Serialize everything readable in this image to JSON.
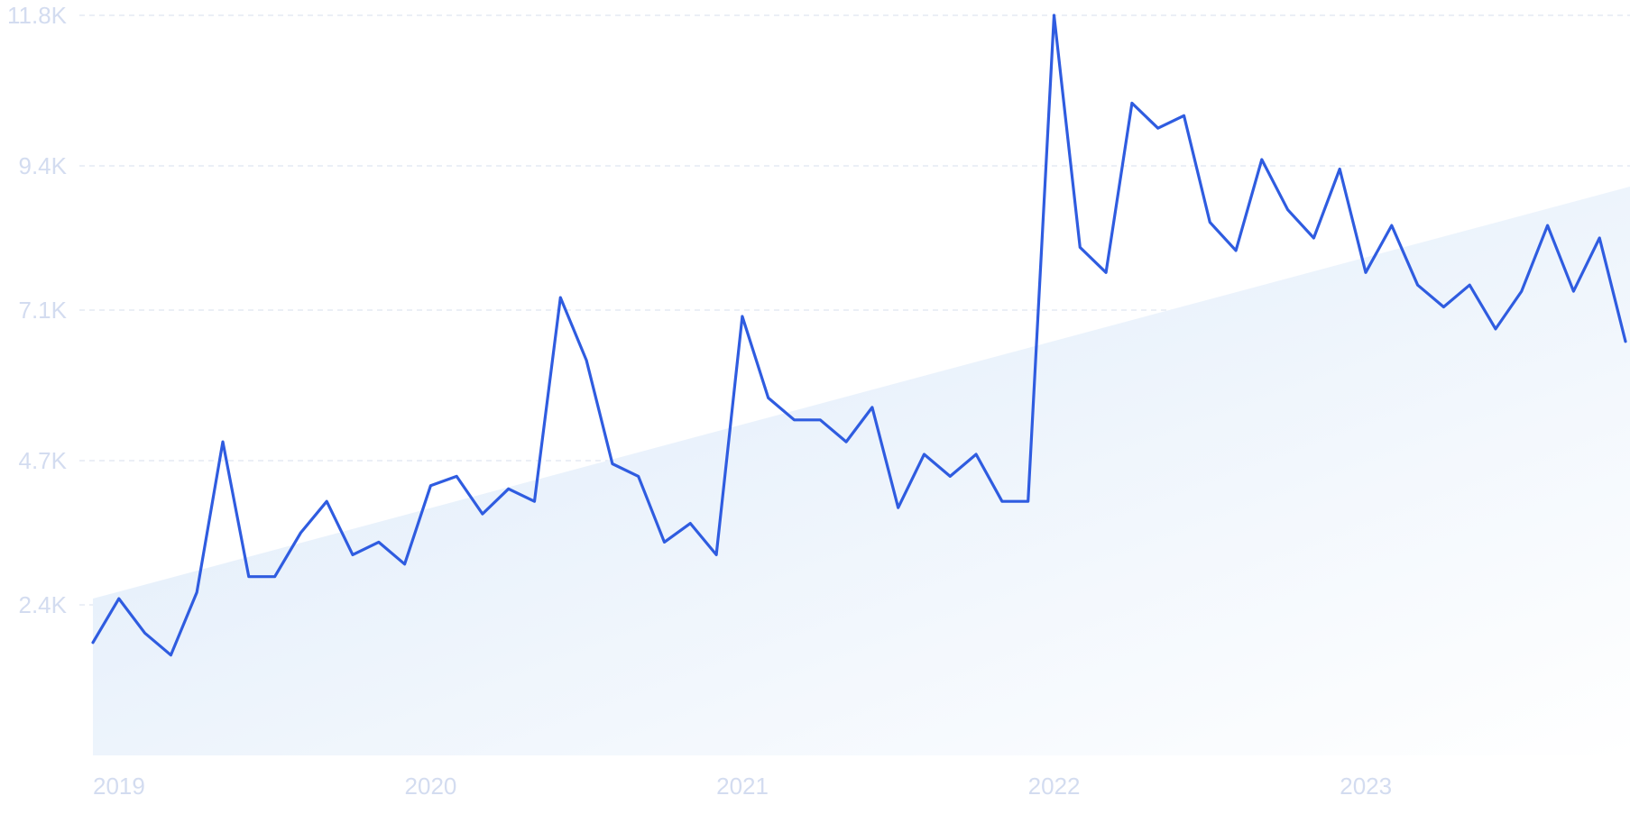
{
  "chart_data": {
    "type": "line",
    "title": "",
    "xlabel": "",
    "ylabel": "",
    "x_ticks": [
      "2019",
      "2020",
      "2021",
      "2022",
      "2023"
    ],
    "y_ticks": [
      "2.4K",
      "4.7K",
      "7.1K",
      "9.4K",
      "11.8K"
    ],
    "y_tick_values": [
      2400,
      4700,
      7100,
      9400,
      11800
    ],
    "ylim": [
      0,
      11800
    ],
    "xlim": [
      "2019-01",
      "2023-12"
    ],
    "grid": true,
    "legend": "none",
    "series": [
      {
        "x": [
          "2019-01",
          "2019-02",
          "2019-03",
          "2019-04",
          "2019-05",
          "2019-06",
          "2019-07",
          "2019-08",
          "2019-09",
          "2019-10",
          "2019-11",
          "2019-12",
          "2020-01",
          "2020-02",
          "2020-03",
          "2020-04",
          "2020-05",
          "2020-06",
          "2020-07",
          "2020-08",
          "2020-09",
          "2020-10",
          "2020-11",
          "2020-12",
          "2021-01",
          "2021-02",
          "2021-03",
          "2021-04",
          "2021-05",
          "2021-06",
          "2021-07",
          "2021-08",
          "2021-09",
          "2021-10",
          "2021-11",
          "2021-12",
          "2022-01",
          "2022-02",
          "2022-03",
          "2022-04",
          "2022-05",
          "2022-06",
          "2022-07",
          "2022-08",
          "2022-09",
          "2022-10",
          "2022-11",
          "2022-12",
          "2023-01",
          "2023-02",
          "2023-03",
          "2023-04",
          "2023-05",
          "2023-06",
          "2023-07",
          "2023-08",
          "2023-09",
          "2023-10",
          "2023-11",
          "2023-12"
        ],
        "values": [
          1800,
          2500,
          1950,
          1600,
          2600,
          5000,
          2850,
          2850,
          3550,
          4050,
          3200,
          3400,
          3050,
          4300,
          4450,
          3850,
          4250,
          4050,
          7300,
          6300,
          4650,
          4450,
          3400,
          3700,
          3200,
          7000,
          5700,
          5350,
          5350,
          5000,
          5550,
          3950,
          4800,
          4450,
          4800,
          4050,
          4050,
          11800,
          8100,
          7700,
          10400,
          10000,
          10200,
          8500,
          8050,
          9500,
          8700,
          8250,
          9350,
          7700,
          8450,
          7500,
          7150,
          7500,
          6800,
          7400,
          8450,
          7400,
          8250,
          6600
        ],
        "color": "#2f5ce0"
      },
      {
        "kind": "trend",
        "x": [
          "2019-01",
          "2023-12"
        ],
        "values": [
          2500,
          9050
        ],
        "color": "#e3eefb"
      }
    ]
  }
}
